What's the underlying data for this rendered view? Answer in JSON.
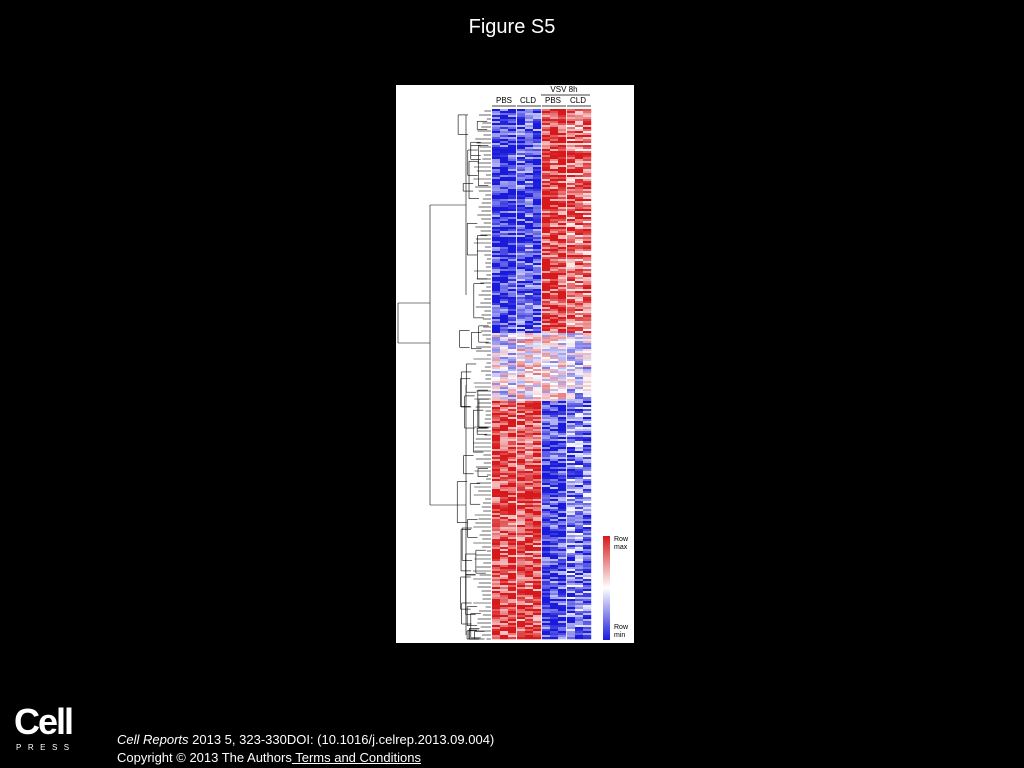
{
  "slide": {
    "title": "Figure S5"
  },
  "figure": {
    "group_top_label": "VSV 8h",
    "column_groups": [
      "PBS",
      "CLD",
      "PBS",
      "CLD"
    ],
    "legend": {
      "max_label": "Row\nmax",
      "min_label": "Row\nmin",
      "colors": {
        "max": "#d7191c",
        "mid": "#ffffff",
        "min": "#1a1adb"
      }
    }
  },
  "footer": {
    "logo_word": "Cell",
    "logo_sub": "PRESS",
    "journal": "Cell Reports",
    "citation_rest": " 2013 5, 323-330DOI: (10.1016/j.celrep.2013.09.004)",
    "copyright": "Copyright © 2013 The Authors",
    "terms_link": " Terms and Conditions"
  },
  "colors": {
    "background": "#000000",
    "text": "#ffffff",
    "heat_red": "#d7191c",
    "heat_blue": "#1a1adb"
  }
}
